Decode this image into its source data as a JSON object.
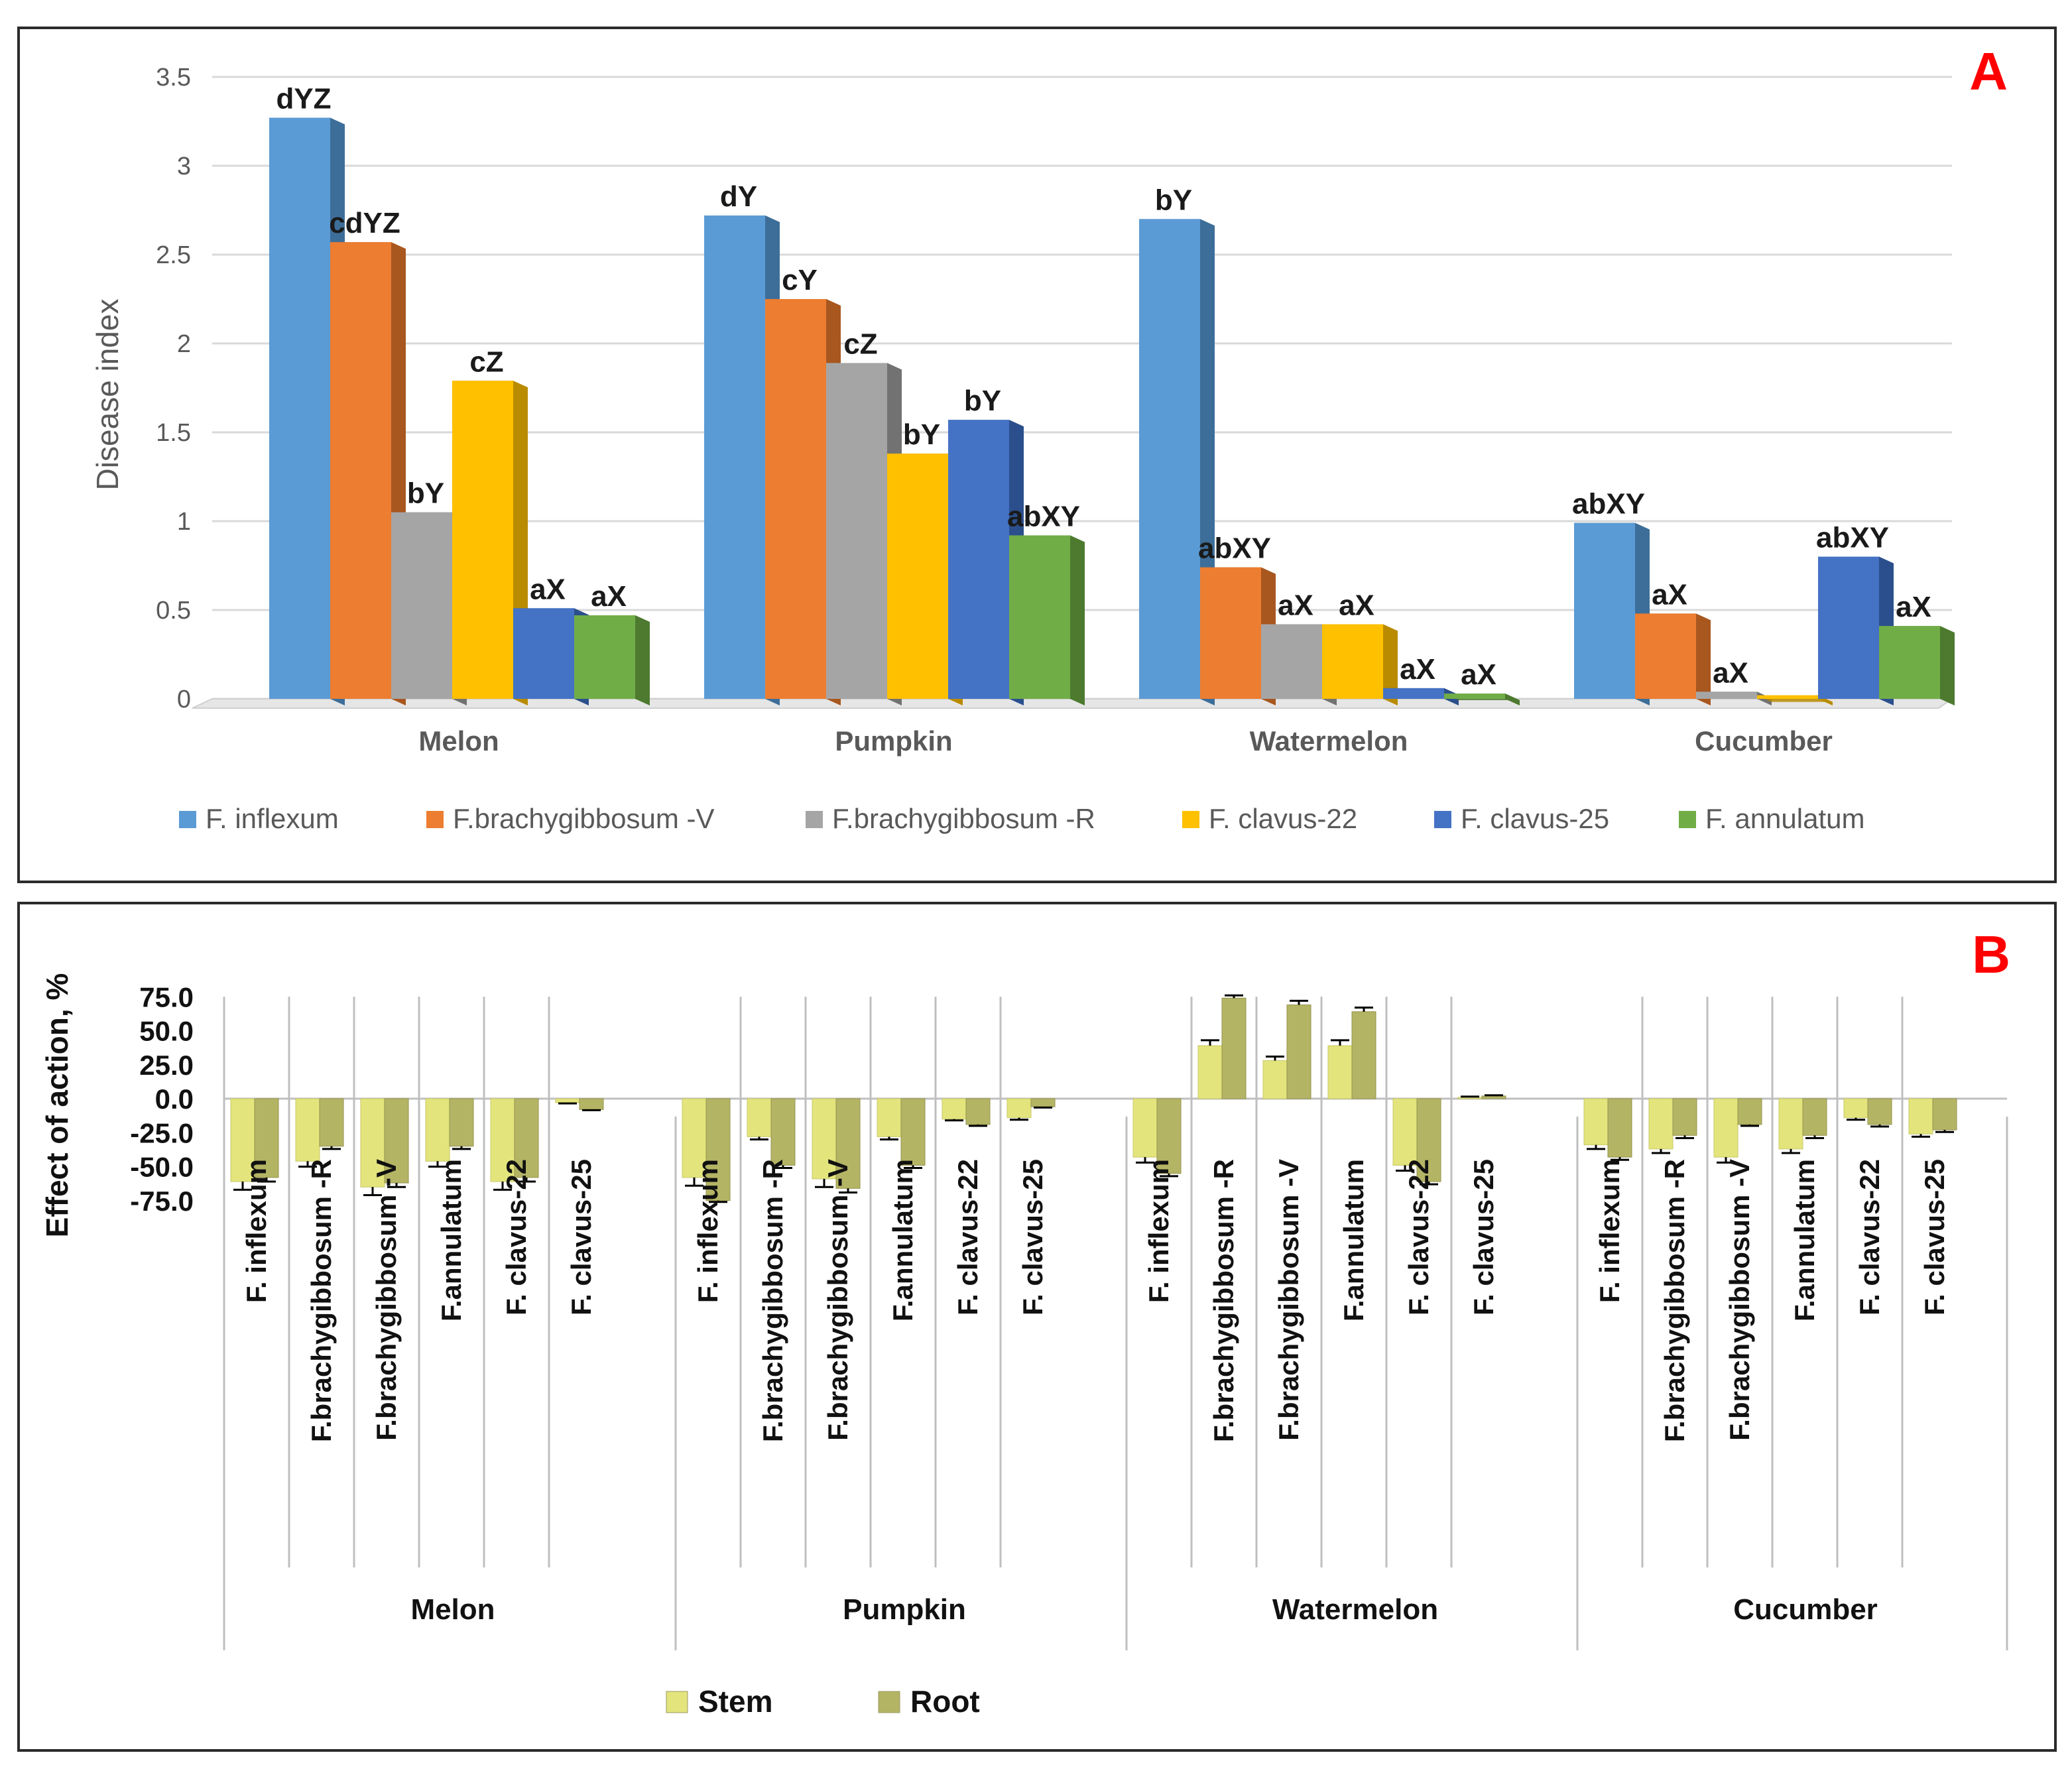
{
  "panels": {
    "a_letter": "A",
    "b_letter": "B"
  },
  "chart_data": [
    {
      "id": "A",
      "type": "bar",
      "ylabel": "Disease index",
      "ylim": [
        0,
        3.5
      ],
      "yticks": [
        "0",
        "0.5",
        "1",
        "1.5",
        "2",
        "2.5",
        "3",
        "3.5"
      ],
      "grid": true,
      "legend_position": "bottom",
      "categories": [
        "Melon",
        "Pumpkin",
        "Watermelon",
        "Cucumber"
      ],
      "series": [
        {
          "name": "F. inflexum",
          "color": "#5b9bd5",
          "side": "#3d6e99",
          "values": [
            3.27,
            2.72,
            2.7,
            0.99
          ],
          "labels": [
            "dYZ",
            "dY",
            "bY",
            "abXY"
          ]
        },
        {
          "name": "F.brachygibbosum -V",
          "color": "#ed7d31",
          "side": "#a8571f",
          "values": [
            2.57,
            2.25,
            0.74,
            0.48
          ],
          "labels": [
            "cdYZ",
            "cY",
            "abXY",
            "aX"
          ]
        },
        {
          "name": "F.brachygibbosum -R",
          "color": "#a5a5a5",
          "side": "#727272",
          "values": [
            1.05,
            1.89,
            0.42,
            0.04
          ],
          "labels": [
            "bY",
            "cZ",
            "aX",
            "aX"
          ]
        },
        {
          "name": "F. clavus-22",
          "color": "#ffc000",
          "side": "#b98b00",
          "values": [
            1.79,
            1.38,
            0.42,
            0.02
          ],
          "labels": [
            "cZ",
            "bY",
            "aX",
            ""
          ]
        },
        {
          "name": "F. clavus-25",
          "color": "#4472c4",
          "side": "#2b4f8c",
          "values": [
            0.51,
            1.57,
            0.06,
            0.8
          ],
          "labels": [
            "aX",
            "bY",
            "aX",
            "abXY"
          ]
        },
        {
          "name": "F. annulatum",
          "color": "#70ad47",
          "side": "#4d7a2f",
          "values": [
            0.47,
            0.92,
            0.03,
            0.41
          ],
          "labels": [
            "aX",
            "abXY",
            "aX",
            "aX"
          ]
        }
      ]
    },
    {
      "id": "B",
      "type": "bar",
      "ylabel": "Effect of action, %",
      "ylim": [
        -75,
        75
      ],
      "yticks": [
        "75.0",
        "50.0",
        "25.0",
        "0.0",
        "-25.0",
        "-50.0",
        "-75.0"
      ],
      "legend_position": "bottom",
      "groups": [
        {
          "name": "Melon",
          "categories": [
            "F. inflexum",
            "F.brachygibbosum -R",
            "F.brachygibbosum -V",
            "F.annulatum",
            "F. clavus-22",
            "F. clavus-25"
          ],
          "stem": [
            -61,
            -46,
            -65,
            -46,
            -61,
            -3
          ],
          "root": [
            -58,
            -35,
            -62,
            -35,
            -58,
            -8
          ],
          "stem_err": [
            6,
            4,
            6,
            4,
            6,
            0.5
          ],
          "root_err": [
            3,
            2,
            3,
            2,
            3,
            0.5
          ]
        },
        {
          "name": "Pumpkin",
          "categories": [
            "F. inflexum",
            "F.brachygibbosum -R",
            "F.brachygibbosum -V",
            "F.annulatum",
            "F. clavus-22",
            "F. clavus-25"
          ],
          "stem": [
            -58,
            -28,
            -59,
            -28,
            -15,
            -14
          ],
          "root": [
            -75,
            -49,
            -66,
            -49,
            -19,
            -6
          ],
          "stem_err": [
            6,
            2,
            6,
            2,
            1,
            1.5
          ],
          "root_err": [
            1,
            2,
            3,
            2,
            1,
            0.5
          ]
        },
        {
          "name": "Watermelon",
          "categories": [
            "F. inflexum",
            "F.brachygibbosum -R",
            "F.brachygibbosum -V",
            "F.annulatum",
            "F. clavus-22",
            "F. clavus-25"
          ],
          "stem": [
            -43,
            39,
            28,
            39,
            -49,
            1
          ],
          "root": [
            -55,
            74,
            69,
            64,
            -61,
            2
          ],
          "stem_err": [
            4,
            4,
            3,
            4,
            4,
            0.5
          ],
          "root_err": [
            2,
            2,
            3,
            3,
            2,
            0.5
          ]
        },
        {
          "name": "Cucumber",
          "categories": [
            "F. inflexum",
            "F.brachygibbosum -R",
            "F.brachygibbosum -V",
            "F.annulatum",
            "F. clavus-22",
            "F. clavus-25"
          ],
          "stem": [
            -34,
            -37,
            -43,
            -37,
            -14,
            -26
          ],
          "root": [
            -43,
            -27,
            -19,
            -27,
            -19,
            -23
          ],
          "stem_err": [
            3,
            3,
            4,
            3,
            1.5,
            2
          ],
          "root_err": [
            2,
            2,
            1,
            2,
            1.5,
            1.5
          ]
        }
      ],
      "series": [
        {
          "name": "Stem",
          "color": "#e3e47c"
        },
        {
          "name": "Root",
          "color": "#b4b465"
        }
      ]
    }
  ]
}
